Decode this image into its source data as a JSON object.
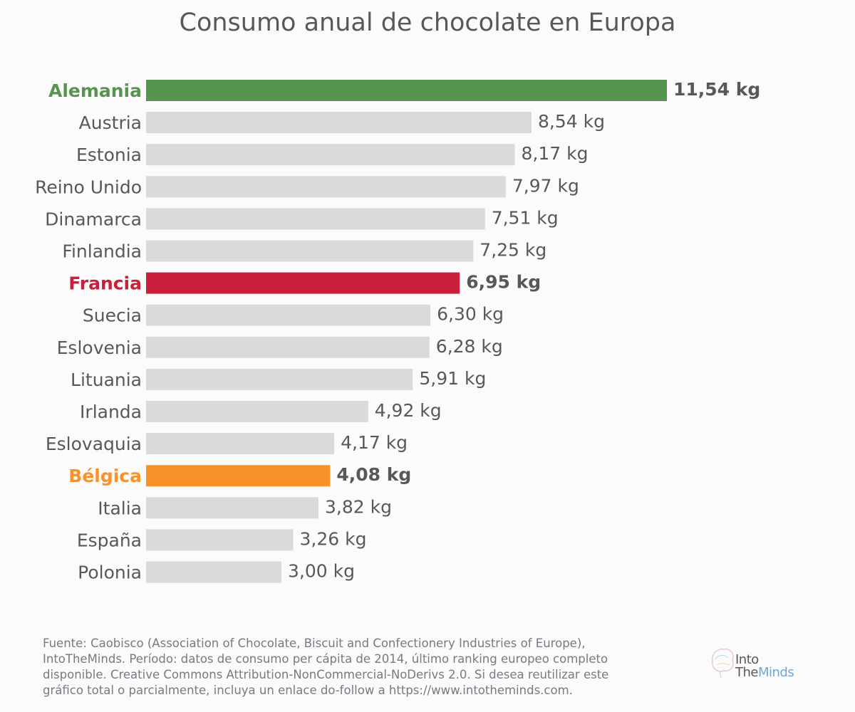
{
  "chart_data": {
    "type": "bar",
    "orientation": "horizontal",
    "title": "Consumo anual de chocolate en Europa",
    "xlabel": "",
    "ylabel": "",
    "unit": "kg",
    "xlim": [
      0,
      11.54
    ],
    "grid": false,
    "categories": [
      "Alemania",
      "Austria",
      "Estonia",
      "Reino Unido",
      "Dinamarca",
      "Finlandia",
      "Francia",
      "Suecia",
      "Eslovenia",
      "Lituania",
      "Irlanda",
      "Eslovaquia",
      "Bélgica",
      "Italia",
      "España",
      "Polonia"
    ],
    "values": [
      11.54,
      8.54,
      8.17,
      7.97,
      7.51,
      7.25,
      6.95,
      6.3,
      6.28,
      5.91,
      4.92,
      4.17,
      4.08,
      3.82,
      3.26,
      3.0
    ],
    "value_labels": [
      "11,54 kg",
      "8,54 kg",
      "8,17 kg",
      "7,97 kg",
      "7,51 kg",
      "7,25 kg",
      "6,95 kg",
      "6,30 kg",
      "6,28 kg",
      "5,91 kg",
      "4,92 kg",
      "4,17 kg",
      "4,08 kg",
      "3,82 kg",
      "3,26 kg",
      "3,00 kg"
    ],
    "default_bar_color": "#dbd9dc",
    "highlights": {
      "Alemania": "#57944f",
      "Francia": "#c8203b",
      "Bélgica": "#f7922c"
    },
    "label_color": "#59575b"
  },
  "footer": {
    "source_lines": [
      "Fuente: Caobisco (Association of Chocolate, Biscuit and Confectionery Industries of Europe),",
      "IntoTheMinds. Período: datos de consumo per cápita de 2014, último ranking europeo completo",
      "disponible. Creative Commons Attribution-NonCommercial-NoDerivs 2.0. Si desea reutilizar este",
      "gráfico total o parcialmente, incluya un enlace do-follow a https://www.intotheminds.com."
    ]
  },
  "logo": {
    "line1": "Into",
    "line2_a": "The",
    "line2_b": "Minds",
    "icon": "brain-icon"
  }
}
